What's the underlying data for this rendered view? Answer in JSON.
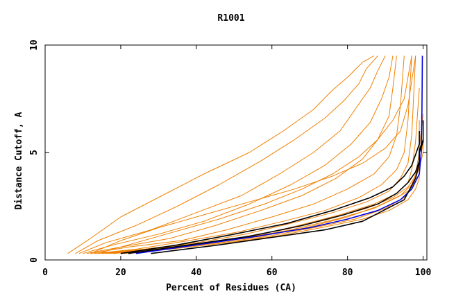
{
  "chart_data": {
    "type": "line",
    "title": "R1001",
    "xlabel": "Percent of Residues (CA)",
    "ylabel": "Distance Cutoff, A",
    "xlim": [
      0,
      101
    ],
    "ylim": [
      0,
      10
    ],
    "x_ticks": [
      0,
      20,
      40,
      60,
      80,
      100
    ],
    "x_tick_labels": [
      "0",
      "20",
      "40",
      "60",
      "80",
      "100"
    ],
    "y_ticks": [
      0,
      5,
      10
    ],
    "y_tick_labels": [
      "0",
      "5",
      "10"
    ],
    "grid": false,
    "legend": "none",
    "colors": {
      "orange": "#f08000",
      "black": "#000000",
      "blue": "#0000dd",
      "axis": "#000000"
    },
    "series": [
      {
        "color": "orange",
        "x": [
          6,
          12,
          20,
          31,
          42,
          54,
          63,
          71,
          76,
          80,
          84,
          87
        ],
        "y": [
          0.3,
          1.0,
          2.0,
          3.0,
          4.0,
          5.0,
          6.0,
          7.0,
          7.9,
          8.5,
          9.2,
          9.5
        ]
      },
      {
        "color": "orange",
        "x": [
          8,
          14,
          24,
          35,
          46,
          57,
          66,
          74,
          79,
          83,
          85,
          88
        ],
        "y": [
          0.3,
          0.9,
          1.6,
          2.5,
          3.5,
          4.6,
          5.6,
          6.6,
          7.4,
          8.2,
          8.9,
          9.5
        ]
      },
      {
        "color": "orange",
        "x": [
          9,
          16,
          28,
          40,
          52,
          62,
          71,
          78,
          82,
          86,
          88,
          90
        ],
        "y": [
          0.3,
          0.8,
          1.4,
          2.2,
          3.0,
          4.0,
          5.0,
          6.0,
          7.0,
          8.0,
          8.8,
          9.5
        ]
      },
      {
        "color": "orange",
        "x": [
          10,
          18,
          30,
          42,
          54,
          65,
          74,
          81,
          86,
          89,
          91,
          92
        ],
        "y": [
          0.3,
          0.7,
          1.2,
          1.8,
          2.6,
          3.5,
          4.4,
          5.4,
          6.4,
          7.5,
          8.5,
          9.5
        ]
      },
      {
        "color": "orange",
        "x": [
          11,
          20,
          33,
          45,
          57,
          68,
          77,
          84,
          88,
          91,
          92,
          93
        ],
        "y": [
          0.3,
          0.6,
          1.0,
          1.6,
          2.3,
          3.0,
          3.8,
          4.7,
          5.6,
          6.7,
          8.0,
          9.5
        ]
      },
      {
        "color": "orange",
        "x": [
          12,
          22,
          36,
          48,
          60,
          71,
          80,
          87,
          91,
          93,
          94,
          95
        ],
        "y": [
          0.3,
          0.6,
          0.9,
          1.4,
          2.0,
          2.6,
          3.3,
          4.0,
          4.8,
          5.8,
          7.2,
          9.5
        ]
      },
      {
        "color": "orange",
        "x": [
          13,
          24,
          38,
          51,
          63,
          74,
          83,
          89,
          93,
          95,
          96,
          97
        ],
        "y": [
          0.3,
          0.5,
          0.9,
          1.3,
          1.8,
          2.3,
          2.9,
          3.5,
          4.2,
          5.0,
          6.5,
          9.5
        ]
      },
      {
        "color": "orange",
        "x": [
          14,
          26,
          40,
          53,
          65,
          76,
          85,
          91,
          94,
          96,
          97,
          98
        ],
        "y": [
          0.3,
          0.5,
          0.8,
          1.2,
          1.7,
          2.2,
          2.7,
          3.2,
          3.8,
          4.5,
          5.8,
          9.5
        ]
      },
      {
        "color": "orange",
        "x": [
          15,
          28,
          42,
          55,
          67,
          78,
          87,
          93,
          96,
          97,
          98,
          99
        ],
        "y": [
          0.3,
          0.5,
          0.8,
          1.1,
          1.6,
          2.1,
          2.6,
          3.1,
          3.6,
          4.2,
          5.5,
          8.0
        ]
      },
      {
        "color": "orange",
        "x": [
          16,
          30,
          44,
          57,
          69,
          80,
          88,
          94,
          97,
          98,
          99,
          99
        ],
        "y": [
          0.3,
          0.5,
          0.8,
          1.1,
          1.5,
          2.0,
          2.5,
          3.0,
          3.5,
          4.0,
          5.0,
          6.5
        ]
      },
      {
        "color": "orange",
        "x": [
          17,
          31,
          46,
          59,
          71,
          82,
          90,
          95,
          97,
          98,
          99,
          99
        ],
        "y": [
          0.3,
          0.5,
          0.8,
          1.1,
          1.5,
          1.9,
          2.4,
          2.9,
          3.4,
          3.9,
          4.6,
          6.0
        ]
      },
      {
        "color": "orange",
        "x": [
          18,
          33,
          48,
          61,
          73,
          84,
          91,
          96,
          98,
          99,
          99,
          100
        ],
        "y": [
          0.3,
          0.5,
          0.8,
          1.1,
          1.5,
          1.9,
          2.3,
          2.8,
          3.3,
          3.8,
          4.4,
          5.5
        ]
      },
      {
        "color": "orange",
        "x": [
          14,
          24,
          34,
          46,
          58,
          68,
          76,
          83,
          88,
          92,
          95,
          97
        ],
        "y": [
          0.3,
          0.8,
          1.3,
          1.9,
          2.6,
          3.3,
          4.0,
          4.8,
          5.6,
          6.5,
          7.5,
          9.5
        ]
      },
      {
        "color": "orange",
        "x": [
          12,
          20,
          30,
          42,
          54,
          66,
          76,
          84,
          90,
          94,
          96,
          98
        ],
        "y": [
          0.3,
          0.9,
          1.5,
          2.1,
          2.7,
          3.3,
          3.9,
          4.5,
          5.2,
          6.0,
          7.2,
          9.5
        ]
      },
      {
        "color": "orange",
        "x": [
          20,
          34,
          50,
          63,
          75,
          85,
          92,
          96,
          98,
          99,
          99,
          100
        ],
        "y": [
          0.3,
          0.6,
          1.0,
          1.4,
          1.9,
          2.4,
          2.9,
          3.4,
          3.9,
          4.4,
          5.2,
          6.8
        ]
      },
      {
        "color": "orange",
        "x": [
          21,
          36,
          52,
          65,
          77,
          87,
          93,
          97,
          98,
          99,
          100,
          100
        ],
        "y": [
          0.3,
          0.6,
          1.0,
          1.4,
          1.9,
          2.4,
          2.9,
          3.3,
          3.8,
          4.3,
          5.0,
          6.2
        ]
      },
      {
        "color": "black",
        "x": [
          20,
          35,
          50,
          64,
          76,
          86,
          92,
          95,
          97,
          98,
          99,
          99
        ],
        "y": [
          0.3,
          0.7,
          1.2,
          1.7,
          2.3,
          2.9,
          3.4,
          3.9,
          4.4,
          4.9,
          5.4,
          6.0
        ]
      },
      {
        "color": "black",
        "x": [
          22,
          38,
          54,
          68,
          79,
          88,
          93,
          96,
          98,
          99,
          99,
          100
        ],
        "y": [
          0.3,
          0.7,
          1.1,
          1.6,
          2.1,
          2.6,
          3.1,
          3.6,
          4.1,
          4.6,
          5.1,
          5.6
        ]
      },
      {
        "color": "black",
        "x": [
          28,
          46,
          62,
          74,
          84,
          95,
          98,
          99,
          99,
          100,
          100,
          100
        ],
        "y": [
          0.3,
          0.7,
          1.1,
          1.4,
          1.8,
          2.8,
          3.8,
          4.5,
          5.0,
          5.5,
          6.0,
          6.5
        ]
      },
      {
        "color": "blue",
        "x": [
          24,
          40,
          56,
          70,
          80,
          88,
          94,
          97,
          99,
          99.5,
          99.7,
          99.8
        ],
        "y": [
          0.3,
          0.7,
          1.1,
          1.5,
          1.9,
          2.3,
          2.8,
          3.3,
          4.0,
          5.0,
          7.0,
          9.5
        ]
      }
    ]
  }
}
